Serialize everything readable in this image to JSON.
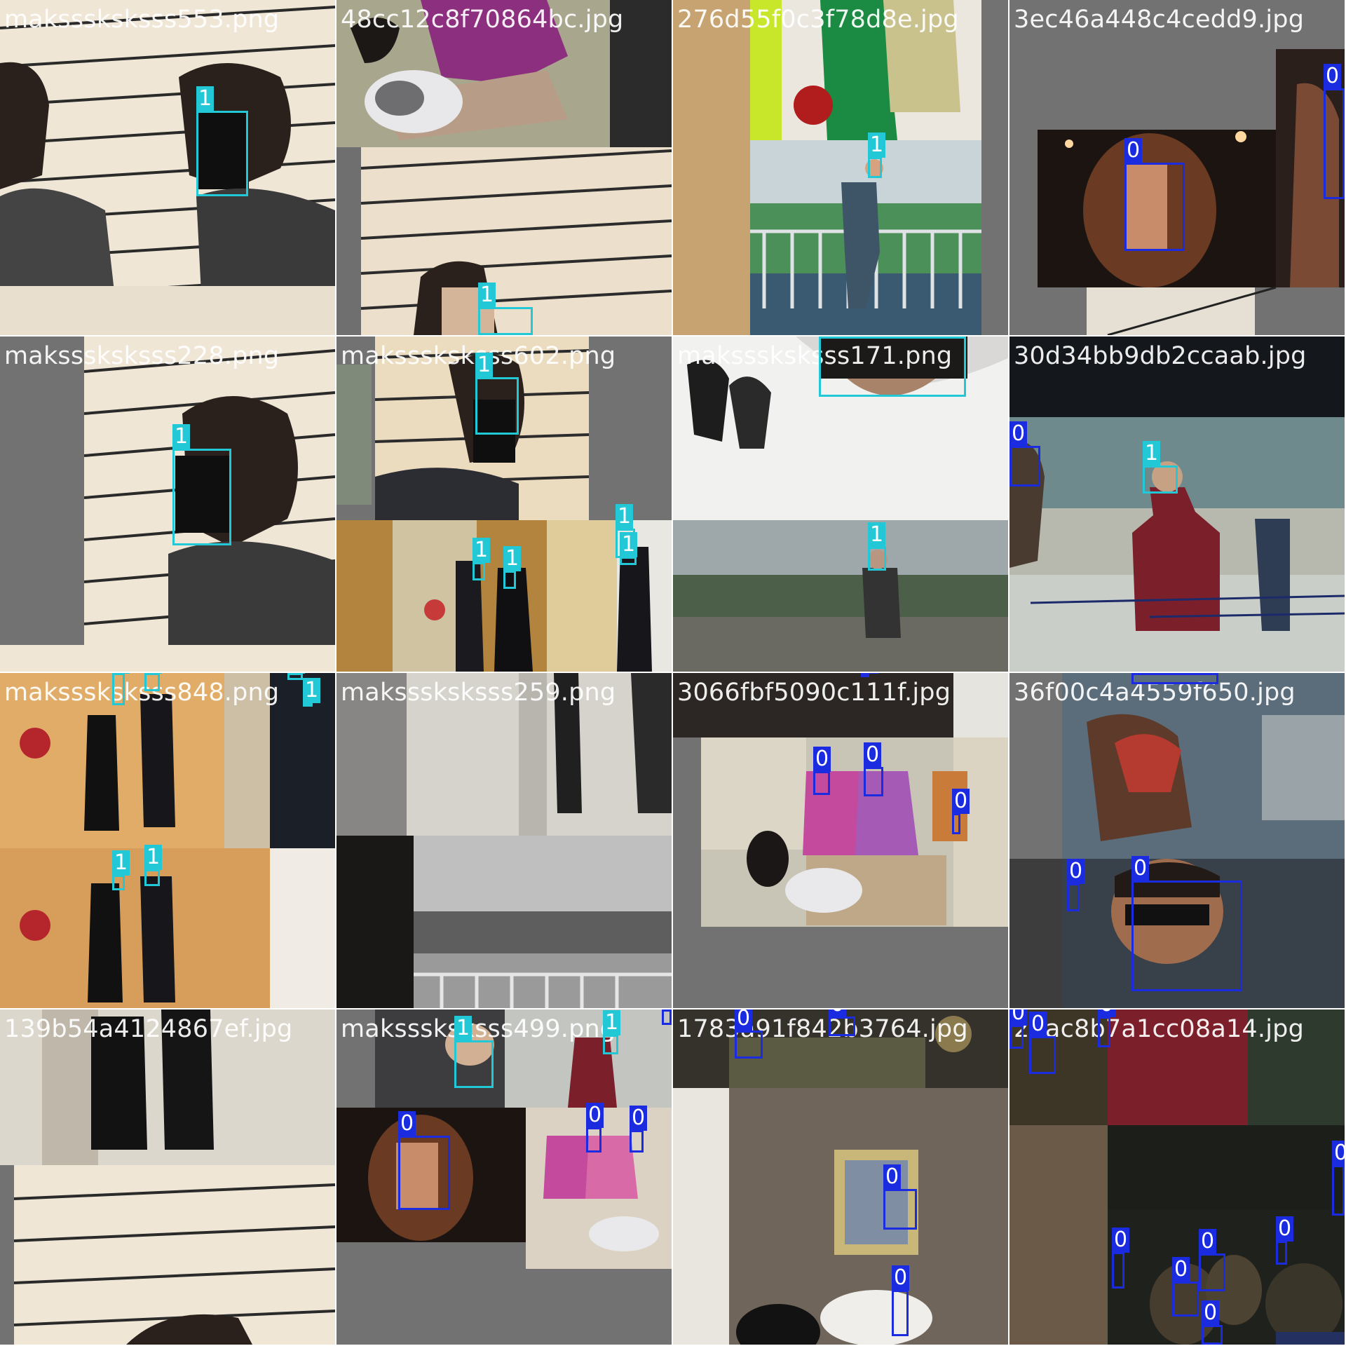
{
  "grid": {
    "tiles": [
      {
        "filename": "maksssksksss553.png"
      },
      {
        "filename": "48cc12c8f70864bc.jpg"
      },
      {
        "filename": "276d55f0c3f78d8e.jpg"
      },
      {
        "filename": "3ec46a448c4cedd9.jpg"
      },
      {
        "filename": "maksssksksss228.png"
      },
      {
        "filename": "maksssksksss602.png"
      },
      {
        "filename": "maksssksksss171.png"
      },
      {
        "filename": "30d34bb9db2ccaab.jpg"
      },
      {
        "filename": "maksssksksss848.png"
      },
      {
        "filename": "maksssksksss259.png"
      },
      {
        "filename": "3066fbf5090c111f.jpg"
      },
      {
        "filename": "36f00c4a4559f650.jpg"
      },
      {
        "filename": "139b54a4124867ef.jpg"
      },
      {
        "filename": "maksssksksss499.png"
      },
      {
        "filename": "1783a91f842b3764.jpg"
      },
      {
        "filename": "20ac8b7a1cc08a14.jpg"
      }
    ]
  },
  "classes": {
    "c0": {
      "label": "0",
      "color": "#1a2be0"
    },
    "c1": {
      "label": "1",
      "color": "#22c8d6"
    }
  }
}
